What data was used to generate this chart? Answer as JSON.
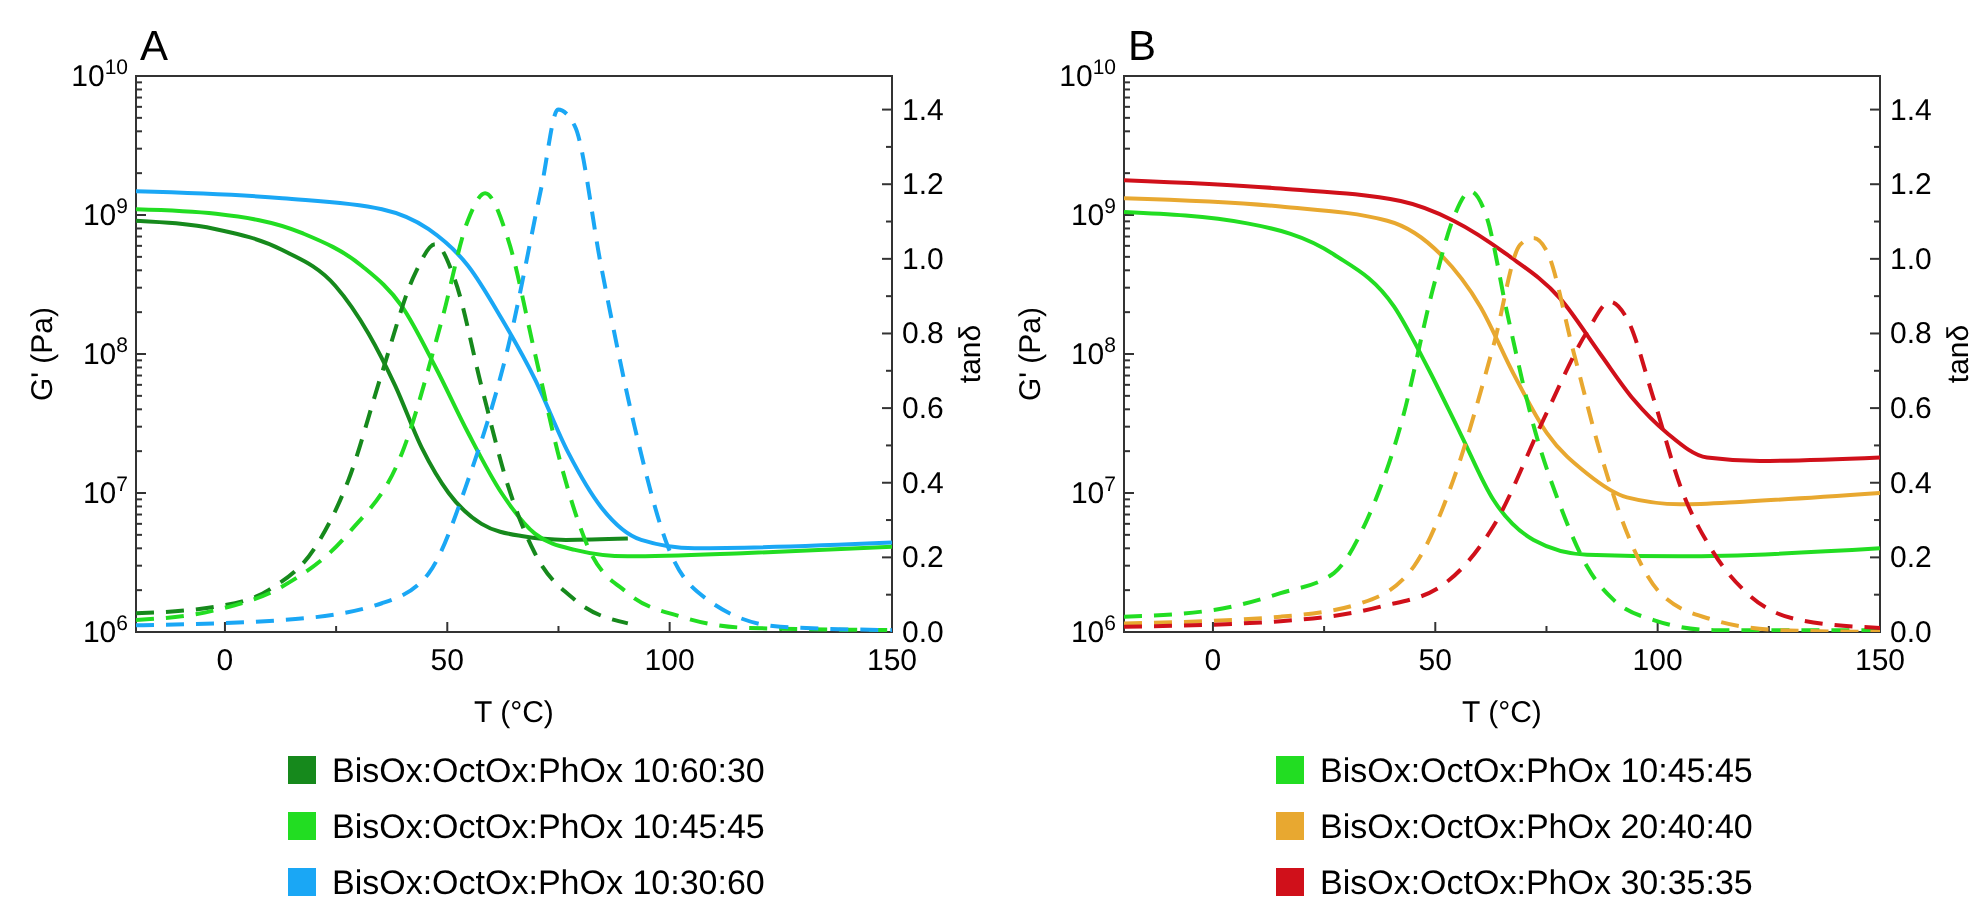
{
  "chart_data": [
    {
      "type": "line",
      "title": "A",
      "xlabel": "T (°C)",
      "ylabel": "G' (Pa)",
      "y2label": "tanδ",
      "log": "y",
      "legend": "bottom",
      "xlim": [
        -20,
        150
      ],
      "xticks": [
        0,
        50,
        100,
        150,
        {
          "value": 25,
          "label": null
        },
        {
          "value": 75,
          "label": null
        },
        {
          "value": 125,
          "label": null
        }
      ],
      "ylim": [
        1000000,
        10000000000
      ],
      "yticks": [
        {
          "value": 1000000,
          "label": "10$^{6}$"
        },
        {
          "value": 10000000,
          "label": "10$^{7}$"
        },
        {
          "value": 100000000,
          "label": "10$^{8}$"
        },
        {
          "value": 1000000000,
          "label": "10$^{9}$"
        },
        {
          "value": 10000000000,
          "label": "10$^{10}$"
        },
        {
          "value": 2000000,
          "label": null
        },
        {
          "value": 3000000,
          "label": null
        },
        {
          "value": 4000000,
          "label": null
        },
        {
          "value": 5000000,
          "label": null
        },
        {
          "value": 6000000,
          "label": null
        },
        {
          "value": 7000000,
          "label": null
        },
        {
          "value": 8000000,
          "label": null
        },
        {
          "value": 9000000,
          "label": null
        },
        {
          "value": 20000000,
          "label": null
        },
        {
          "value": 30000000,
          "label": null
        },
        {
          "value": 40000000,
          "label": null
        },
        {
          "value": 50000000,
          "label": null
        },
        {
          "value": 60000000,
          "label": null
        },
        {
          "value": 70000000,
          "label": null
        },
        {
          "value": 80000000,
          "label": null
        },
        {
          "value": 90000000,
          "label": null
        },
        {
          "value": 200000000,
          "label": null
        },
        {
          "value": 300000000,
          "label": null
        },
        {
          "value": 400000000,
          "label": null
        },
        {
          "value": 500000000,
          "label": null
        },
        {
          "value": 600000000,
          "label": null
        },
        {
          "value": 700000000,
          "label": null
        },
        {
          "value": 800000000,
          "label": null
        },
        {
          "value": 900000000,
          "label": null
        },
        {
          "value": 2000000000,
          "label": null
        },
        {
          "value": 3000000000,
          "label": null
        },
        {
          "value": 4000000000,
          "label": null
        },
        {
          "value": 5000000000,
          "label": null
        },
        {
          "value": 6000000000,
          "label": null
        },
        {
          "value": 7000000000,
          "label": null
        },
        {
          "value": 8000000000,
          "label": null
        },
        {
          "value": 9000000000,
          "label": null
        }
      ],
      "y2lim": [
        0,
        1.49
      ],
      "y2ticks": [
        {
          "value": 0,
          "label": "0.0"
        },
        0.2,
        0.4,
        0.6,
        0.8,
        {
          "value": 1,
          "label": "1.0"
        },
        1.2,
        1.4,
        {
          "value": 0.1,
          "label": null
        },
        {
          "value": 0.3,
          "label": null
        },
        {
          "value": 0.5,
          "label": null
        },
        {
          "value": 0.7,
          "label": null
        },
        {
          "value": 0.9,
          "label": null
        },
        {
          "value": 1.1,
          "label": null
        },
        {
          "value": 1.3,
          "label": null
        }
      ],
      "series": [
        {
          "name": "BisOx:OctOx:PhOx 10:60:30",
          "color": "#16891c",
          "x": [
            -20,
            -2,
            12.9,
            24.8,
            32.3,
            38.3,
            44.3,
            50.3,
            57.7,
            66.7,
            76.7,
            90.6
          ],
          "values": [
            910000000,
            790000000,
            560000000,
            310000000,
            140000000,
            59000000,
            21000000,
            10000000,
            6000000,
            4900000,
            4600000,
            4700000
          ]
        },
        {
          "name": "BisOx:OctOx:PhOx 10:45:45",
          "color": "#22dd22",
          "x": [
            -20,
            -2,
            17.4,
            30.8,
            39.8,
            47.3,
            54.7,
            62.2,
            69.7,
            78.7,
            90.6,
            117.5,
            150
          ],
          "values": [
            1100000000,
            1020000000,
            740000000,
            430000000,
            220000000,
            81000000,
            27000000,
            10000000,
            5100000,
            3900000,
            3500000,
            3700000,
            4100000
          ]
        },
        {
          "name": "BisOx:OctOx:PhOx 10:30:60",
          "color": "#1aa7f5",
          "x": [
            -20,
            12.9,
            35.3,
            45.8,
            54.7,
            62.2,
            69.7,
            77.2,
            84.6,
            93.6,
            105.6,
            150
          ],
          "values": [
            1480000000,
            1320000000,
            1100000000,
            790000000,
            430000000,
            180000000,
            66000000,
            19500000,
            7900000,
            4600000,
            4000000,
            4400000
          ]
        },
        {
          "color": "#16891c",
          "axis": "y2",
          "line_style": "dashed",
          "x": [
            -20,
            -2,
            9.9,
            20.4,
            27.8,
            35.3,
            42.8,
            47.3,
            51.7,
            57.7,
            63.7,
            69.7,
            78.7,
            90.6
          ],
          "values": [
            0.05,
            0.068,
            0.113,
            0.229,
            0.408,
            0.694,
            0.962,
            1.039,
            0.944,
            0.658,
            0.39,
            0.211,
            0.086,
            0.023
          ]
        },
        {
          "color": "#22dd22",
          "axis": "y2",
          "line_style": "dashed",
          "x": [
            -20,
            -2,
            12.9,
            27.8,
            39.8,
            48.8,
            54.7,
            58.5,
            63.7,
            69.7,
            75.7,
            81.6,
            90.6,
            102.6,
            117.5,
            150
          ],
          "values": [
            0.032,
            0.059,
            0.122,
            0.265,
            0.479,
            0.837,
            1.105,
            1.176,
            1.051,
            0.747,
            0.443,
            0.229,
            0.104,
            0.041,
            0.011,
            0.005
          ]
        },
        {
          "color": "#1aa7f5",
          "axis": "y2",
          "line_style": "dashed",
          "x": [
            -20,
            12.9,
            35.3,
            45.8,
            54.7,
            63.7,
            71.2,
            74.9,
            78.7,
            84.6,
            92.1,
            99.6,
            108.6,
            124.9,
            150
          ],
          "values": [
            0.018,
            0.032,
            0.077,
            0.157,
            0.408,
            0.765,
            1.194,
            1.4,
            1.355,
            0.98,
            0.551,
            0.229,
            0.086,
            0.014,
            0.005
          ]
        }
      ]
    },
    {
      "type": "line",
      "title": "B",
      "xlabel": "T (°C)",
      "ylabel": "G' (Pa)",
      "y2label": "tanδ",
      "log": "y",
      "legend": "bottom",
      "xlim": [
        -20,
        150
      ],
      "xticks": [
        0,
        50,
        100,
        150,
        {
          "value": 25,
          "label": null
        },
        {
          "value": 75,
          "label": null
        },
        {
          "value": 125,
          "label": null
        }
      ],
      "ylim": [
        1000000,
        10000000000
      ],
      "yticks": [
        {
          "value": 1000000,
          "label": "10$^{6}$"
        },
        {
          "value": 10000000,
          "label": "10$^{7}$"
        },
        {
          "value": 100000000,
          "label": "10$^{8}$"
        },
        {
          "value": 1000000000,
          "label": "10$^{9}$"
        },
        {
          "value": 10000000000,
          "label": "10$^{10}$"
        },
        {
          "value": 2000000,
          "label": null
        },
        {
          "value": 3000000,
          "label": null
        },
        {
          "value": 4000000,
          "label": null
        },
        {
          "value": 5000000,
          "label": null
        },
        {
          "value": 6000000,
          "label": null
        },
        {
          "value": 7000000,
          "label": null
        },
        {
          "value": 8000000,
          "label": null
        },
        {
          "value": 9000000,
          "label": null
        },
        {
          "value": 20000000,
          "label": null
        },
        {
          "value": 30000000,
          "label": null
        },
        {
          "value": 40000000,
          "label": null
        },
        {
          "value": 50000000,
          "label": null
        },
        {
          "value": 60000000,
          "label": null
        },
        {
          "value": 70000000,
          "label": null
        },
        {
          "value": 80000000,
          "label": null
        },
        {
          "value": 90000000,
          "label": null
        },
        {
          "value": 200000000,
          "label": null
        },
        {
          "value": 300000000,
          "label": null
        },
        {
          "value": 400000000,
          "label": null
        },
        {
          "value": 500000000,
          "label": null
        },
        {
          "value": 600000000,
          "label": null
        },
        {
          "value": 700000000,
          "label": null
        },
        {
          "value": 800000000,
          "label": null
        },
        {
          "value": 900000000,
          "label": null
        },
        {
          "value": 2000000000,
          "label": null
        },
        {
          "value": 3000000000,
          "label": null
        },
        {
          "value": 4000000000,
          "label": null
        },
        {
          "value": 5000000000,
          "label": null
        },
        {
          "value": 6000000000,
          "label": null
        },
        {
          "value": 7000000000,
          "label": null
        },
        {
          "value": 8000000000,
          "label": null
        },
        {
          "value": 9000000000,
          "label": null
        }
      ],
      "y2lim": [
        0,
        1.49
      ],
      "y2ticks": [
        {
          "value": 0,
          "label": "0.0"
        },
        0.2,
        0.4,
        0.6,
        0.8,
        {
          "value": 1,
          "label": "1.0"
        },
        1.2,
        1.4,
        {
          "value": 0.1,
          "label": null
        },
        {
          "value": 0.3,
          "label": null
        },
        {
          "value": 0.5,
          "label": null
        },
        {
          "value": 0.7,
          "label": null
        },
        {
          "value": 0.9,
          "label": null
        },
        {
          "value": 1.1,
          "label": null
        },
        {
          "value": 1.3,
          "label": null
        }
      ],
      "series": [
        {
          "name": "BisOx:OctOx:PhOx 10:45:45",
          "color": "#22dd22",
          "x": [
            -20,
            7.7,
            27.2,
            40.7,
            48.2,
            55.6,
            63.1,
            72.1,
            84.1,
            105.1,
            150
          ],
          "values": [
            1050000000,
            870000000,
            520000000,
            220000000,
            81000000,
            27000000,
            8900000,
            4600000,
            3600000,
            3500000,
            4000000
          ]
        },
        {
          "name": "BisOx:OctOx:PhOx 20:40:40",
          "color": "#e8a830",
          "x": [
            -20,
            15.2,
            39.2,
            51.2,
            60.1,
            67.6,
            75.1,
            84.1,
            93.1,
            105.1,
            120.1,
            150
          ],
          "values": [
            1320000000,
            1150000000,
            910000000,
            520000000,
            220000000,
            72000000,
            27000000,
            13800000,
            9300000,
            8300000,
            8700000,
            10000000
          ]
        },
        {
          "name": "BisOx:OctOx:PhOx 30:35:35",
          "color": "#d0101a",
          "x": [
            -20,
            15.2,
            42.2,
            54.1,
            66.1,
            78.1,
            87.1,
            94.6,
            102.1,
            111.1,
            123,
            150
          ],
          "values": [
            1780000000,
            1550000000,
            1260000000,
            910000000,
            520000000,
            250000000,
            100000000,
            47000000,
            27000000,
            18000000,
            17000000,
            18000000
          ]
        },
        {
          "color": "#22dd22",
          "axis": "y2",
          "line_style": "dashed",
          "x": [
            -20,
            0.2,
            15.2,
            27.2,
            34.7,
            42.2,
            49.7,
            54.1,
            57.9,
            61.6,
            66.1,
            72.1,
            78.1,
            84.1,
            90.1,
            99.1,
            112.6,
            150
          ],
          "values": [
            0.041,
            0.059,
            0.104,
            0.158,
            0.302,
            0.553,
            0.93,
            1.11,
            1.181,
            1.11,
            0.858,
            0.553,
            0.338,
            0.176,
            0.086,
            0.032,
            0.005,
            0.005
          ]
        },
        {
          "color": "#e8a830",
          "axis": "y2",
          "line_style": "dashed",
          "x": [
            -20,
            15.2,
            33.2,
            45.2,
            54.1,
            63.1,
            69.1,
            72.1,
            75.1,
            81.1,
            87.1,
            93.1,
            100.6,
            112.6,
            127.5,
            150
          ],
          "values": [
            0.023,
            0.041,
            0.077,
            0.176,
            0.409,
            0.768,
            1.038,
            1.056,
            1.02,
            0.75,
            0.481,
            0.266,
            0.104,
            0.032,
            0.005,
            0
          ]
        },
        {
          "color": "#d0101a",
          "axis": "y2",
          "line_style": "dashed",
          "x": [
            -20,
            15.2,
            37.7,
            51.2,
            63.1,
            75.1,
            84.1,
            89.3,
            93.1,
            99.1,
            105.1,
            112.6,
            120.1,
            132,
            150
          ],
          "values": [
            0.014,
            0.029,
            0.068,
            0.122,
            0.284,
            0.589,
            0.804,
            0.885,
            0.84,
            0.625,
            0.391,
            0.212,
            0.104,
            0.032,
            0.011
          ]
        }
      ]
    }
  ]
}
